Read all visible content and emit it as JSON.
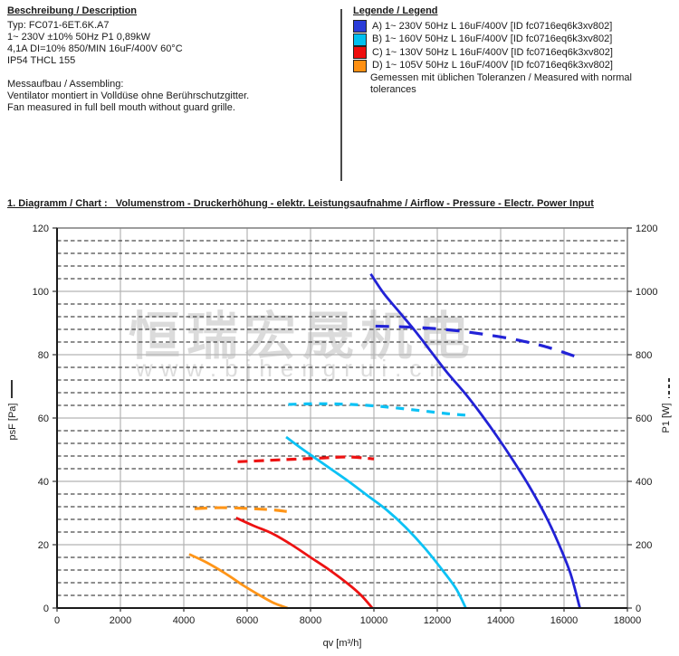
{
  "description": {
    "heading": "Beschreibung / Description",
    "lines": [
      "Typ: FC071-6ET.6K.A7",
      "1~ 230V ±10% 50Hz P1 0,89kW",
      "4,1A DI=10% 850/MIN 16uF/400V 60°C",
      "IP54 THCL 155"
    ],
    "assembling_heading": "Messaufbau / Assembling:",
    "assembling_lines": [
      "Ventilator montiert in Volldüse ohne Berührschutzgitter.",
      "Fan measured in full bell mouth without guard grille."
    ]
  },
  "legend": {
    "heading": "Legende / Legend",
    "items": [
      {
        "label": "A) 1~ 230V 50Hz L 16uF/400V [ID fc0716eq6k3xv802]",
        "color": "#2a3cd8"
      },
      {
        "label": "B) 1~ 160V 50Hz L 16uF/400V [ID fc0716eq6k3xv802]",
        "color": "#00c0f0"
      },
      {
        "label": "C) 1~ 130V 50Hz L 16uF/400V [ID fc0716eq6k3xv802]",
        "color": "#ee0d0d"
      },
      {
        "label": "D) 1~ 105V 50Hz L 16uF/400V [ID fc0716eq6k3xv802]",
        "color": "#ff9012"
      }
    ],
    "note": "Gemessen mit üblichen Toleranzen / Measured with normal tolerances"
  },
  "watermark": {
    "cn": "恒瑞宏晟机电",
    "url": "www.bjhengrui.cn"
  },
  "chart_data": {
    "type": "line",
    "title": "1. Diagramm / Chart :   Volumenstrom - Druckerhöhung - elektr. Leistungsaufnahme / Airflow - Pressure - Electr. Power Input",
    "xlabel": "qv [m³/h]",
    "ylabel_left": "psF [Pa]",
    "ylabel_right": "P1 [W]",
    "xlim": [
      0,
      18000
    ],
    "ylim_left": [
      0,
      120
    ],
    "ylim_right": [
      0,
      1200
    ],
    "x_ticks": [
      0,
      2000,
      4000,
      6000,
      8000,
      10000,
      12000,
      14000,
      16000,
      18000
    ],
    "y_ticks_left": [
      0,
      20,
      40,
      60,
      80,
      100,
      120
    ],
    "y_ticks_right": [
      0,
      200,
      400,
      600,
      800,
      1000,
      1200
    ],
    "minor_y_step_left": 4,
    "grid": "major gray solid, minor horizontal black dashed",
    "legend_position": "top-right header block",
    "series": [
      {
        "id": "a-power",
        "name": "A) 1~ 230V 50Hz - P1 power",
        "axis": "right",
        "line": "dashed",
        "color": "#2222d6",
        "dash": "15 11",
        "width": 3.2,
        "points": [
          [
            10050,
            890
          ],
          [
            10900,
            888
          ],
          [
            11700,
            884
          ],
          [
            12600,
            876
          ],
          [
            13500,
            864
          ],
          [
            14500,
            847
          ],
          [
            15500,
            823
          ],
          [
            16600,
            786
          ]
        ]
      },
      {
        "id": "b-power",
        "name": "B) 1~ 160V 50Hz - P1 power",
        "axis": "right",
        "line": "dashed",
        "color": "#0cc2f5",
        "dash": "9 8",
        "width": 3.2,
        "points": [
          [
            7300,
            643
          ],
          [
            8100,
            645
          ],
          [
            9000,
            644
          ],
          [
            9800,
            640
          ],
          [
            10600,
            633
          ],
          [
            11500,
            623
          ],
          [
            12300,
            614
          ],
          [
            12900,
            609
          ]
        ]
      },
      {
        "id": "c-power",
        "name": "C) 1~ 130V 50Hz - P1 power",
        "axis": "right",
        "line": "dashed",
        "color": "#ed1212",
        "dash": "11 7",
        "width": 3.2,
        "points": [
          [
            5700,
            462
          ],
          [
            6600,
            466
          ],
          [
            7500,
            470
          ],
          [
            8400,
            474
          ],
          [
            9200,
            477
          ],
          [
            10000,
            471
          ]
        ]
      },
      {
        "id": "d-power",
        "name": "D) 1~ 105V 50Hz - P1 power",
        "axis": "right",
        "line": "dashed",
        "color": "#ff9518",
        "dash": "14 8",
        "width": 3.2,
        "points": [
          [
            4340,
            314
          ],
          [
            5200,
            317
          ],
          [
            6100,
            314
          ],
          [
            6800,
            310
          ],
          [
            7250,
            305
          ]
        ]
      },
      {
        "id": "a-pressure",
        "name": "A) 1~ 230V 50Hz - psF pressure",
        "axis": "left",
        "line": "solid",
        "color": "#2222d6",
        "dash": "",
        "width": 2.8,
        "points": [
          [
            9900,
            105.5
          ],
          [
            10300,
            99.5
          ],
          [
            10800,
            93.5
          ],
          [
            11300,
            87.5
          ],
          [
            11800,
            81
          ],
          [
            12300,
            74.5
          ],
          [
            12900,
            67.5
          ],
          [
            13400,
            61
          ],
          [
            13900,
            54
          ],
          [
            14400,
            46.5
          ],
          [
            14900,
            38.5
          ],
          [
            15400,
            29.5
          ],
          [
            15800,
            21
          ],
          [
            16200,
            11
          ],
          [
            16500,
            0
          ]
        ]
      },
      {
        "id": "b-pressure",
        "name": "B) 1~ 160V 50Hz - psF pressure",
        "axis": "left",
        "line": "solid",
        "color": "#0cc2f5",
        "dash": "",
        "width": 2.8,
        "points": [
          [
            7230,
            54
          ],
          [
            7700,
            50.5
          ],
          [
            8200,
            47
          ],
          [
            8700,
            43.5
          ],
          [
            9200,
            40
          ],
          [
            9800,
            35.5
          ],
          [
            10400,
            31
          ],
          [
            11000,
            25.5
          ],
          [
            11600,
            19
          ],
          [
            12200,
            11.5
          ],
          [
            12600,
            6
          ],
          [
            12900,
            0
          ]
        ]
      },
      {
        "id": "c-pressure",
        "name": "C) 1~ 130V 50Hz - psF pressure",
        "axis": "left",
        "line": "solid",
        "color": "#ed1212",
        "dash": "",
        "width": 2.8,
        "points": [
          [
            5650,
            28.5
          ],
          [
            6200,
            26
          ],
          [
            6800,
            23.5
          ],
          [
            7400,
            20
          ],
          [
            8000,
            16
          ],
          [
            8600,
            12
          ],
          [
            9200,
            7.5
          ],
          [
            9600,
            4
          ],
          [
            9950,
            0
          ]
        ]
      },
      {
        "id": "d-pressure",
        "name": "D) 1~ 105V 50Hz - psF pressure",
        "axis": "left",
        "line": "solid",
        "color": "#ff9518",
        "dash": "",
        "width": 2.8,
        "points": [
          [
            4170,
            17
          ],
          [
            4700,
            14.5
          ],
          [
            5300,
            11
          ],
          [
            5900,
            7
          ],
          [
            6400,
            4
          ],
          [
            6800,
            1.8
          ],
          [
            7100,
            0.6
          ],
          [
            7280,
            0
          ]
        ]
      }
    ]
  }
}
